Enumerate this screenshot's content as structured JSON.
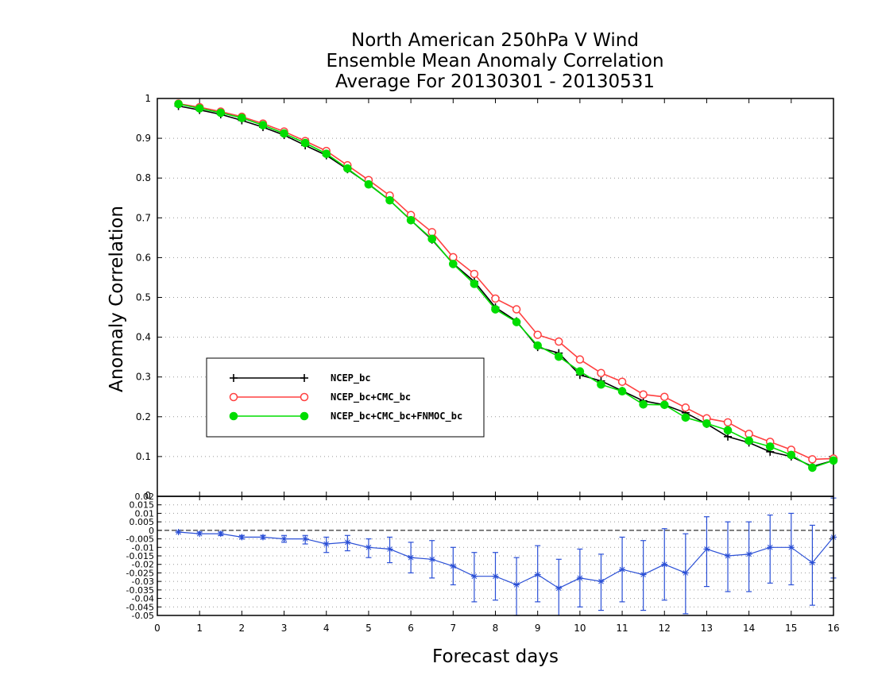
{
  "chart_data": [
    {
      "type": "line",
      "title": [
        "North American 250hPa V Wind",
        "Ensemble Mean Anomaly Correlation",
        "Average For 20130301 - 20130531"
      ],
      "xlabel": "Forecast days",
      "ylabel": "Anomaly Correlation",
      "xlim": [
        0,
        16
      ],
      "ylim": [
        0,
        1
      ],
      "x_ticks": [
        "0",
        "1",
        "2",
        "3",
        "4",
        "5",
        "6",
        "7",
        "8",
        "9",
        "10",
        "11",
        "12",
        "13",
        "14",
        "15",
        "16"
      ],
      "y_ticks": [
        "0.1",
        "0.2",
        "0.3",
        "0.4",
        "0.5",
        "0.6",
        "0.7",
        "0.8",
        "0.9",
        "1"
      ],
      "grid": "dotted horizontal",
      "legend_position": "lower-left",
      "x": [
        0.5,
        1,
        1.5,
        2,
        2.5,
        3,
        3.5,
        4,
        4.5,
        5,
        5.5,
        6,
        6.5,
        7,
        7.5,
        8,
        8.5,
        9,
        9.5,
        10,
        10.5,
        11,
        11.5,
        12,
        12.5,
        13,
        13.5,
        14,
        14.5,
        15,
        15.5,
        16
      ],
      "series": [
        {
          "name": "NCEP_bc",
          "color": "#000000",
          "marker": "plus",
          "values": [
            0.981,
            0.971,
            0.96,
            0.945,
            0.928,
            0.908,
            0.882,
            0.857,
            0.822,
            0.785,
            0.744,
            0.694,
            0.645,
            0.585,
            0.54,
            0.475,
            0.44,
            0.375,
            0.36,
            0.305,
            0.29,
            0.265,
            0.24,
            0.23,
            0.21,
            0.182,
            0.15,
            0.135,
            0.112,
            0.1,
            0.075,
            0.09
          ]
        },
        {
          "name": "NCEP_bc+CMC_bc",
          "color": "#ff4040",
          "marker": "open-circle",
          "values": [
            0.987,
            0.978,
            0.967,
            0.954,
            0.937,
            0.917,
            0.893,
            0.868,
            0.832,
            0.795,
            0.756,
            0.707,
            0.664,
            0.601,
            0.559,
            0.497,
            0.47,
            0.406,
            0.389,
            0.344,
            0.31,
            0.288,
            0.256,
            0.25,
            0.223,
            0.196,
            0.186,
            0.157,
            0.137,
            0.117,
            0.093,
            0.095
          ]
        },
        {
          "name": "NCEP_bc+CMC_bc+FNMOC_bc",
          "color": "#00dd00",
          "marker": "filled-circle",
          "values": [
            0.986,
            0.975,
            0.964,
            0.951,
            0.933,
            0.912,
            0.888,
            0.861,
            0.824,
            0.784,
            0.744,
            0.694,
            0.647,
            0.584,
            0.534,
            0.47,
            0.438,
            0.379,
            0.351,
            0.314,
            0.281,
            0.264,
            0.231,
            0.23,
            0.198,
            0.183,
            0.166,
            0.14,
            0.125,
            0.104,
            0.072,
            0.09
          ]
        }
      ]
    },
    {
      "type": "line",
      "xlim": [
        0,
        16
      ],
      "ylim": [
        -0.05,
        0.02
      ],
      "y_ticks": [
        "0.02",
        "0.015",
        "0.01",
        "0.005",
        "0",
        "-0.005",
        "-0.01",
        "-0.015",
        "-0.02",
        "-0.025",
        "-0.03",
        "-0.035",
        "-0.04",
        "-0.045",
        "-0.05"
      ],
      "reference_line": 0,
      "x": [
        0.5,
        1,
        1.5,
        2,
        2.5,
        3,
        3.5,
        4,
        4.5,
        5,
        5.5,
        6,
        6.5,
        7,
        7.5,
        8,
        8.5,
        9,
        9.5,
        10,
        10.5,
        11,
        11.5,
        12,
        12.5,
        13,
        13.5,
        14,
        14.5,
        15,
        15.5,
        16
      ],
      "series": [
        {
          "color": "#2a4fd6",
          "marker": "star",
          "values": [
            -0.001,
            -0.002,
            -0.002,
            -0.004,
            -0.004,
            -0.005,
            -0.005,
            -0.008,
            -0.007,
            -0.01,
            -0.011,
            -0.016,
            -0.017,
            -0.021,
            -0.027,
            -0.027,
            -0.032,
            -0.026,
            -0.034,
            -0.028,
            -0.03,
            -0.023,
            -0.026,
            -0.02,
            -0.025,
            -0.011,
            -0.015,
            -0.014,
            -0.01,
            -0.01,
            -0.019,
            -0.004
          ],
          "error_low": [
            -0.001,
            -0.002,
            -0.003,
            -0.005,
            -0.005,
            -0.007,
            -0.008,
            -0.013,
            -0.012,
            -0.016,
            -0.019,
            -0.025,
            -0.028,
            -0.032,
            -0.042,
            -0.041,
            -0.05,
            -0.042,
            -0.052,
            -0.045,
            -0.047,
            -0.042,
            -0.047,
            -0.041,
            -0.049,
            -0.033,
            -0.036,
            -0.036,
            -0.031,
            -0.032,
            -0.044,
            -0.028
          ],
          "error_high": [
            -0.001,
            -0.001,
            -0.001,
            -0.003,
            -0.003,
            -0.003,
            -0.003,
            -0.004,
            -0.003,
            -0.005,
            -0.004,
            -0.007,
            -0.006,
            -0.01,
            -0.013,
            -0.013,
            -0.016,
            -0.009,
            -0.017,
            -0.011,
            -0.014,
            -0.004,
            -0.006,
            0.001,
            -0.002,
            0.008,
            0.005,
            0.005,
            0.009,
            0.01,
            0.003,
            0.019
          ]
        }
      ]
    }
  ]
}
